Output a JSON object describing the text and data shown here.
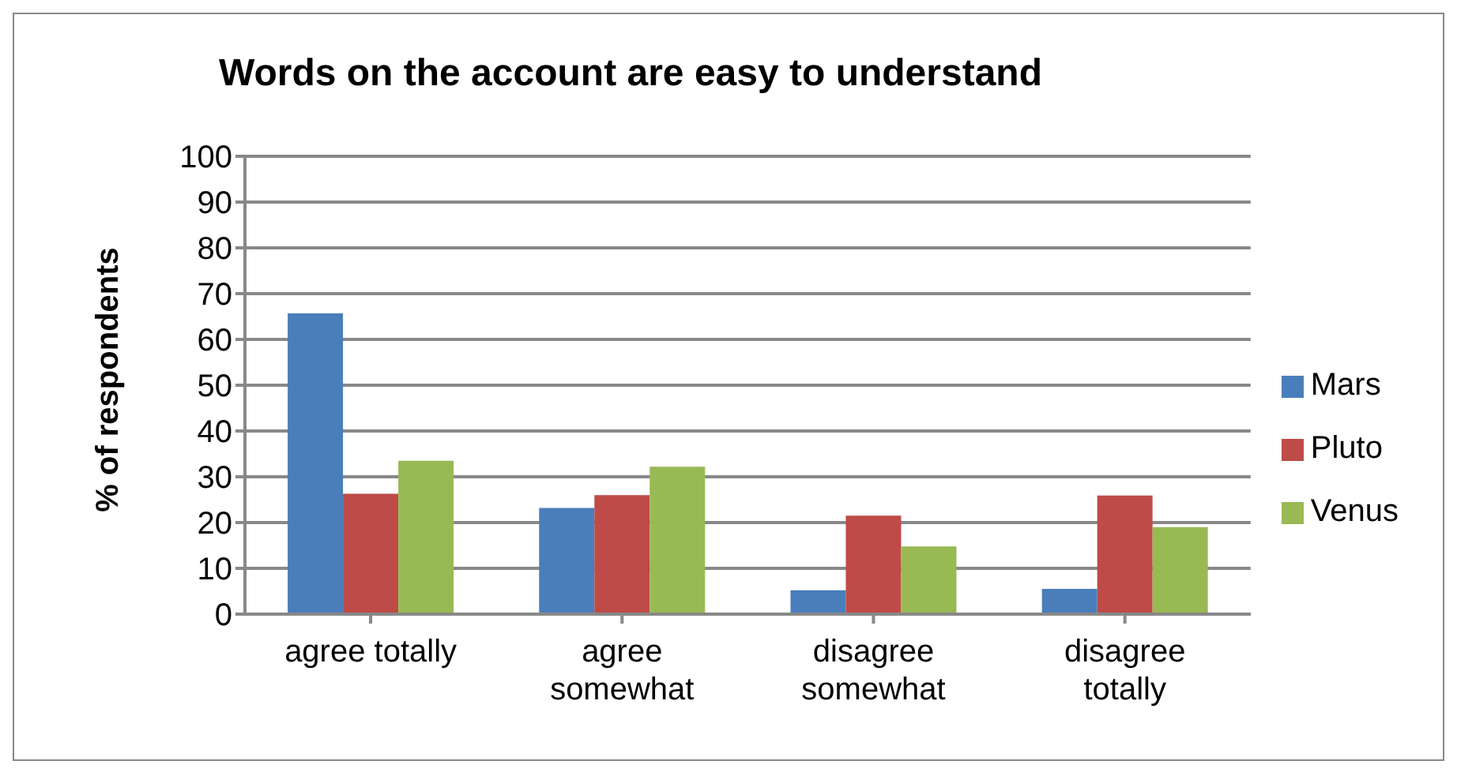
{
  "chart_data": {
    "type": "bar",
    "title": "Words on the account are easy to understand",
    "ylabel": "% of respondents",
    "categories": [
      "agree totally",
      "agree somewhat",
      "disagree somewhat",
      "disagree totally"
    ],
    "series": [
      {
        "name": "Mars",
        "color": "#4a7ebb",
        "values": [
          65.7,
          23.2,
          5.2,
          5.5
        ]
      },
      {
        "name": "Pluto",
        "color": "#be4b48",
        "values": [
          26.3,
          26,
          21.5,
          25.9
        ]
      },
      {
        "name": "Venus",
        "color": "#98b954",
        "values": [
          33.5,
          32.2,
          14.8,
          19
        ]
      }
    ],
    "ylim": [
      0,
      100
    ],
    "yticks": [
      0,
      10,
      20,
      30,
      40,
      50,
      60,
      70,
      80,
      90,
      100
    ],
    "grid": "y",
    "legend": "right"
  }
}
